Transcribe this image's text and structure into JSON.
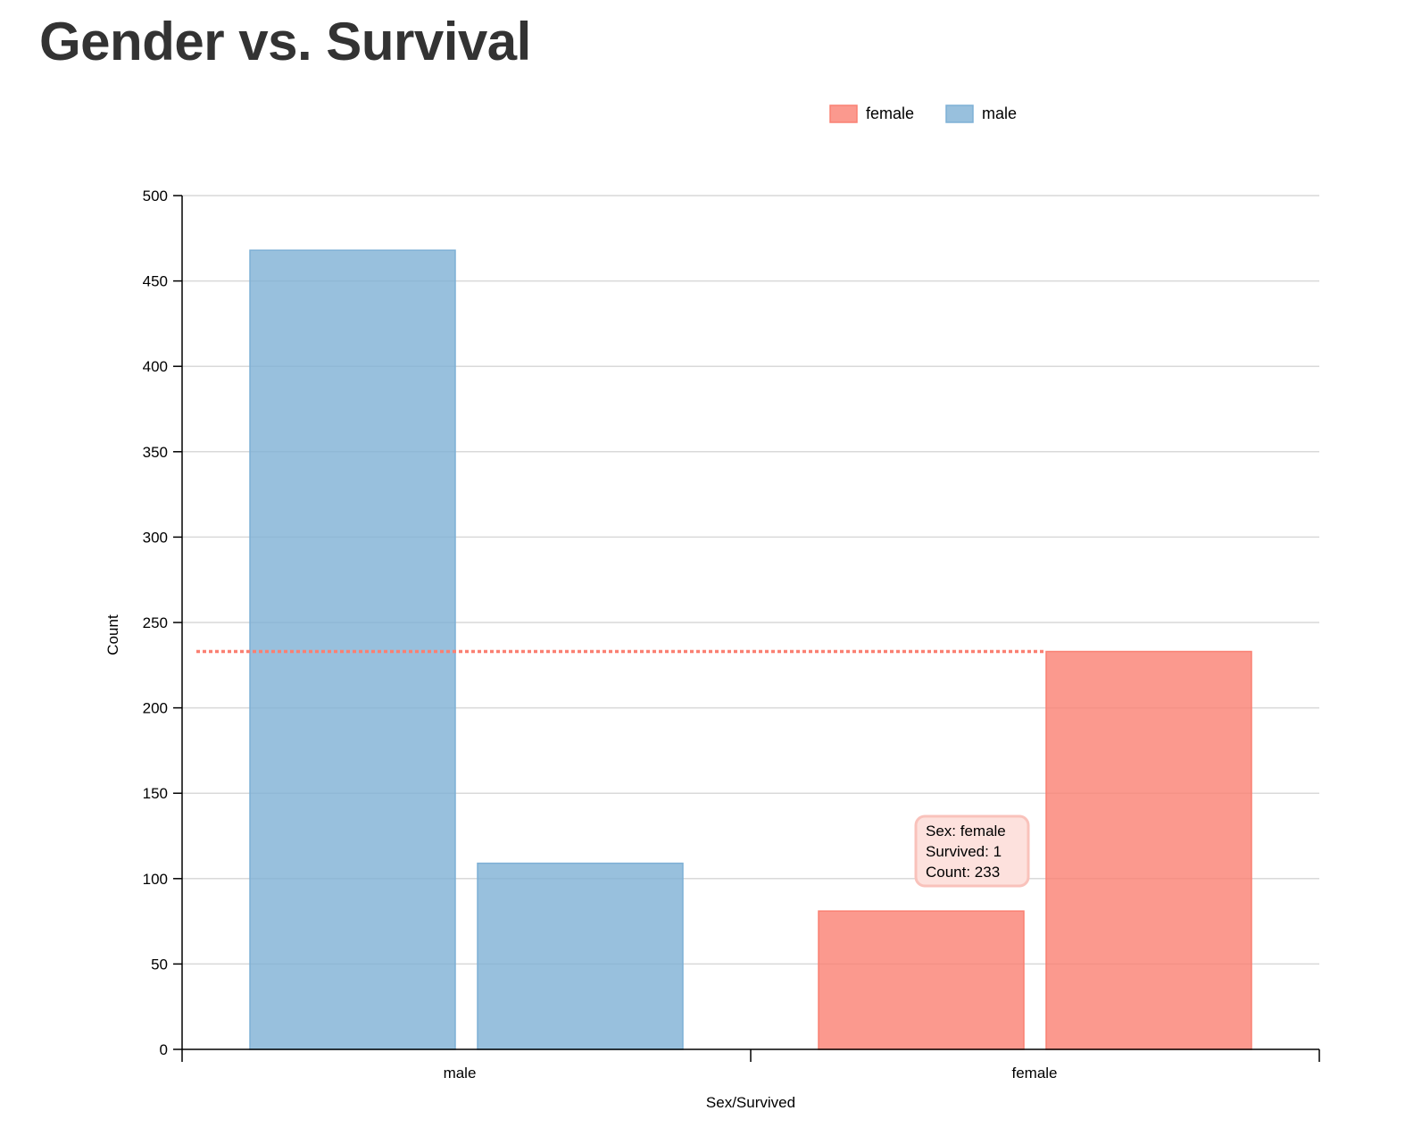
{
  "title": "Gender vs. Survival",
  "chart_data": {
    "type": "bar",
    "title": "Gender vs. Survival",
    "xlabel": "Sex/Survived",
    "ylabel": "Count",
    "ylim": [
      0,
      500
    ],
    "yticks": [
      0,
      50,
      100,
      150,
      200,
      250,
      300,
      350,
      400,
      450,
      500
    ],
    "grid": true,
    "legend_position": "top-right",
    "categories": [
      "male",
      "female"
    ],
    "series": [
      {
        "name": "female",
        "color": "#fa8072"
      },
      {
        "name": "male",
        "color": "#7eb0d5"
      }
    ],
    "bars": [
      {
        "sex": "male",
        "survived": 0,
        "count": 468
      },
      {
        "sex": "male",
        "survived": 1,
        "count": 109
      },
      {
        "sex": "female",
        "survived": 0,
        "count": 81
      },
      {
        "sex": "female",
        "survived": 1,
        "count": 233
      }
    ],
    "reference_line": {
      "value": 233,
      "color": "#fa8072",
      "style": "dotted"
    },
    "tooltip": {
      "lines": [
        "Sex: female",
        "Survived: 1",
        "Count: 233"
      ]
    }
  }
}
